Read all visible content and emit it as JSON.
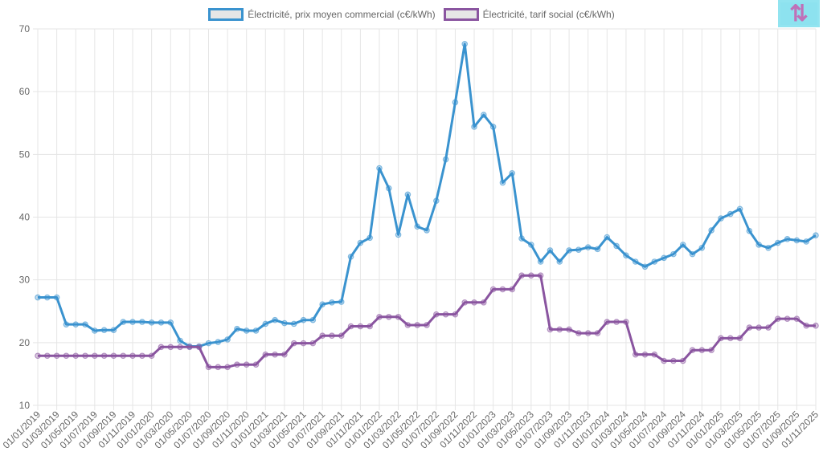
{
  "chart_data": {
    "type": "line",
    "title": "",
    "xlabel": "",
    "ylabel": "",
    "ylim": [
      10,
      70
    ],
    "yticks": [
      10,
      20,
      30,
      40,
      50,
      60,
      70
    ],
    "grid": true,
    "legend_position": "top-center",
    "x": [
      "01/01/2019",
      "01/02/2019",
      "01/03/2019",
      "01/04/2019",
      "01/05/2019",
      "01/06/2019",
      "01/07/2019",
      "01/08/2019",
      "01/09/2019",
      "01/10/2019",
      "01/11/2019",
      "01/12/2019",
      "01/01/2020",
      "01/02/2020",
      "01/03/2020",
      "01/04/2020",
      "01/05/2020",
      "01/06/2020",
      "01/07/2020",
      "01/08/2020",
      "01/09/2020",
      "01/10/2020",
      "01/11/2020",
      "01/12/2020",
      "01/01/2021",
      "01/02/2021",
      "01/03/2021",
      "01/04/2021",
      "01/05/2021",
      "01/06/2021",
      "01/07/2021",
      "01/08/2021",
      "01/09/2021",
      "01/10/2021",
      "01/11/2021",
      "01/12/2021",
      "01/01/2022",
      "01/02/2022",
      "01/03/2022",
      "01/04/2022",
      "01/05/2022",
      "01/06/2022",
      "01/07/2022",
      "01/08/2022",
      "01/09/2022",
      "01/10/2022",
      "01/11/2022",
      "01/12/2022",
      "01/01/2023",
      "01/02/2023",
      "01/03/2023",
      "01/04/2023",
      "01/05/2023",
      "01/06/2023",
      "01/07/2023",
      "01/08/2023",
      "01/09/2023",
      "01/10/2023",
      "01/11/2023",
      "01/12/2023",
      "01/01/2024",
      "01/02/2024",
      "01/03/2024",
      "01/04/2024",
      "01/05/2024",
      "01/06/2024",
      "01/07/2024",
      "01/08/2024",
      "01/09/2024",
      "01/10/2024",
      "01/11/2024",
      "01/12/2024",
      "01/01/2025",
      "01/02/2025",
      "01/03/2025",
      "01/04/2025",
      "01/05/2025",
      "01/06/2025",
      "01/07/2025",
      "01/08/2025",
      "01/09/2025",
      "01/10/2025",
      "01/11/2025"
    ],
    "xtick_every": 2,
    "series": [
      {
        "name": "Électricité, prix moyen commercial (c€/kWh)",
        "color": "#3a93cf",
        "values": [
          27.2,
          27.2,
          27.2,
          22.9,
          22.9,
          22.9,
          21.9,
          22.0,
          22.0,
          23.3,
          23.3,
          23.3,
          23.2,
          23.2,
          23.2,
          20.3,
          19.4,
          19.4,
          19.9,
          20.1,
          20.5,
          22.2,
          21.9,
          21.9,
          23.0,
          23.6,
          23.1,
          23.0,
          23.6,
          23.6,
          26.1,
          26.4,
          26.5,
          33.7,
          35.9,
          36.7,
          47.8,
          44.6,
          37.2,
          43.6,
          38.5,
          37.9,
          42.6,
          49.2,
          58.3,
          67.6,
          54.4,
          56.3,
          54.4,
          45.5,
          47.0,
          36.6,
          35.6,
          32.9,
          34.7,
          32.9,
          34.7,
          34.8,
          35.2,
          34.9,
          36.8,
          35.4,
          33.9,
          32.9,
          32.1,
          32.9,
          33.5,
          34.1,
          35.6,
          34.1,
          35.1,
          37.9,
          39.8,
          40.5,
          41.3,
          37.8,
          35.6,
          35.1,
          35.9,
          36.5,
          36.3,
          36.1,
          37.1
        ]
      },
      {
        "name": "Électricité, tarif social (c€/kWh)",
        "color": "#8a55a0",
        "values": [
          17.9,
          17.9,
          17.9,
          17.9,
          17.9,
          17.9,
          17.9,
          17.9,
          17.9,
          17.9,
          17.9,
          17.9,
          17.9,
          19.3,
          19.3,
          19.3,
          19.3,
          19.3,
          16.1,
          16.1,
          16.1,
          16.5,
          16.5,
          16.5,
          18.1,
          18.1,
          18.1,
          19.9,
          19.9,
          19.9,
          21.1,
          21.1,
          21.1,
          22.6,
          22.6,
          22.6,
          24.1,
          24.1,
          24.1,
          22.8,
          22.8,
          22.8,
          24.5,
          24.5,
          24.5,
          26.4,
          26.4,
          26.4,
          28.5,
          28.5,
          28.5,
          30.7,
          30.7,
          30.7,
          22.1,
          22.1,
          22.1,
          21.5,
          21.5,
          21.5,
          23.3,
          23.3,
          23.3,
          18.1,
          18.1,
          18.1,
          17.1,
          17.1,
          17.1,
          18.8,
          18.8,
          18.8,
          20.7,
          20.7,
          20.7,
          22.4,
          22.4,
          22.4,
          23.8,
          23.8,
          23.8,
          22.7,
          22.7
        ]
      }
    ]
  },
  "controls": {
    "sort_icon": "⇅"
  }
}
